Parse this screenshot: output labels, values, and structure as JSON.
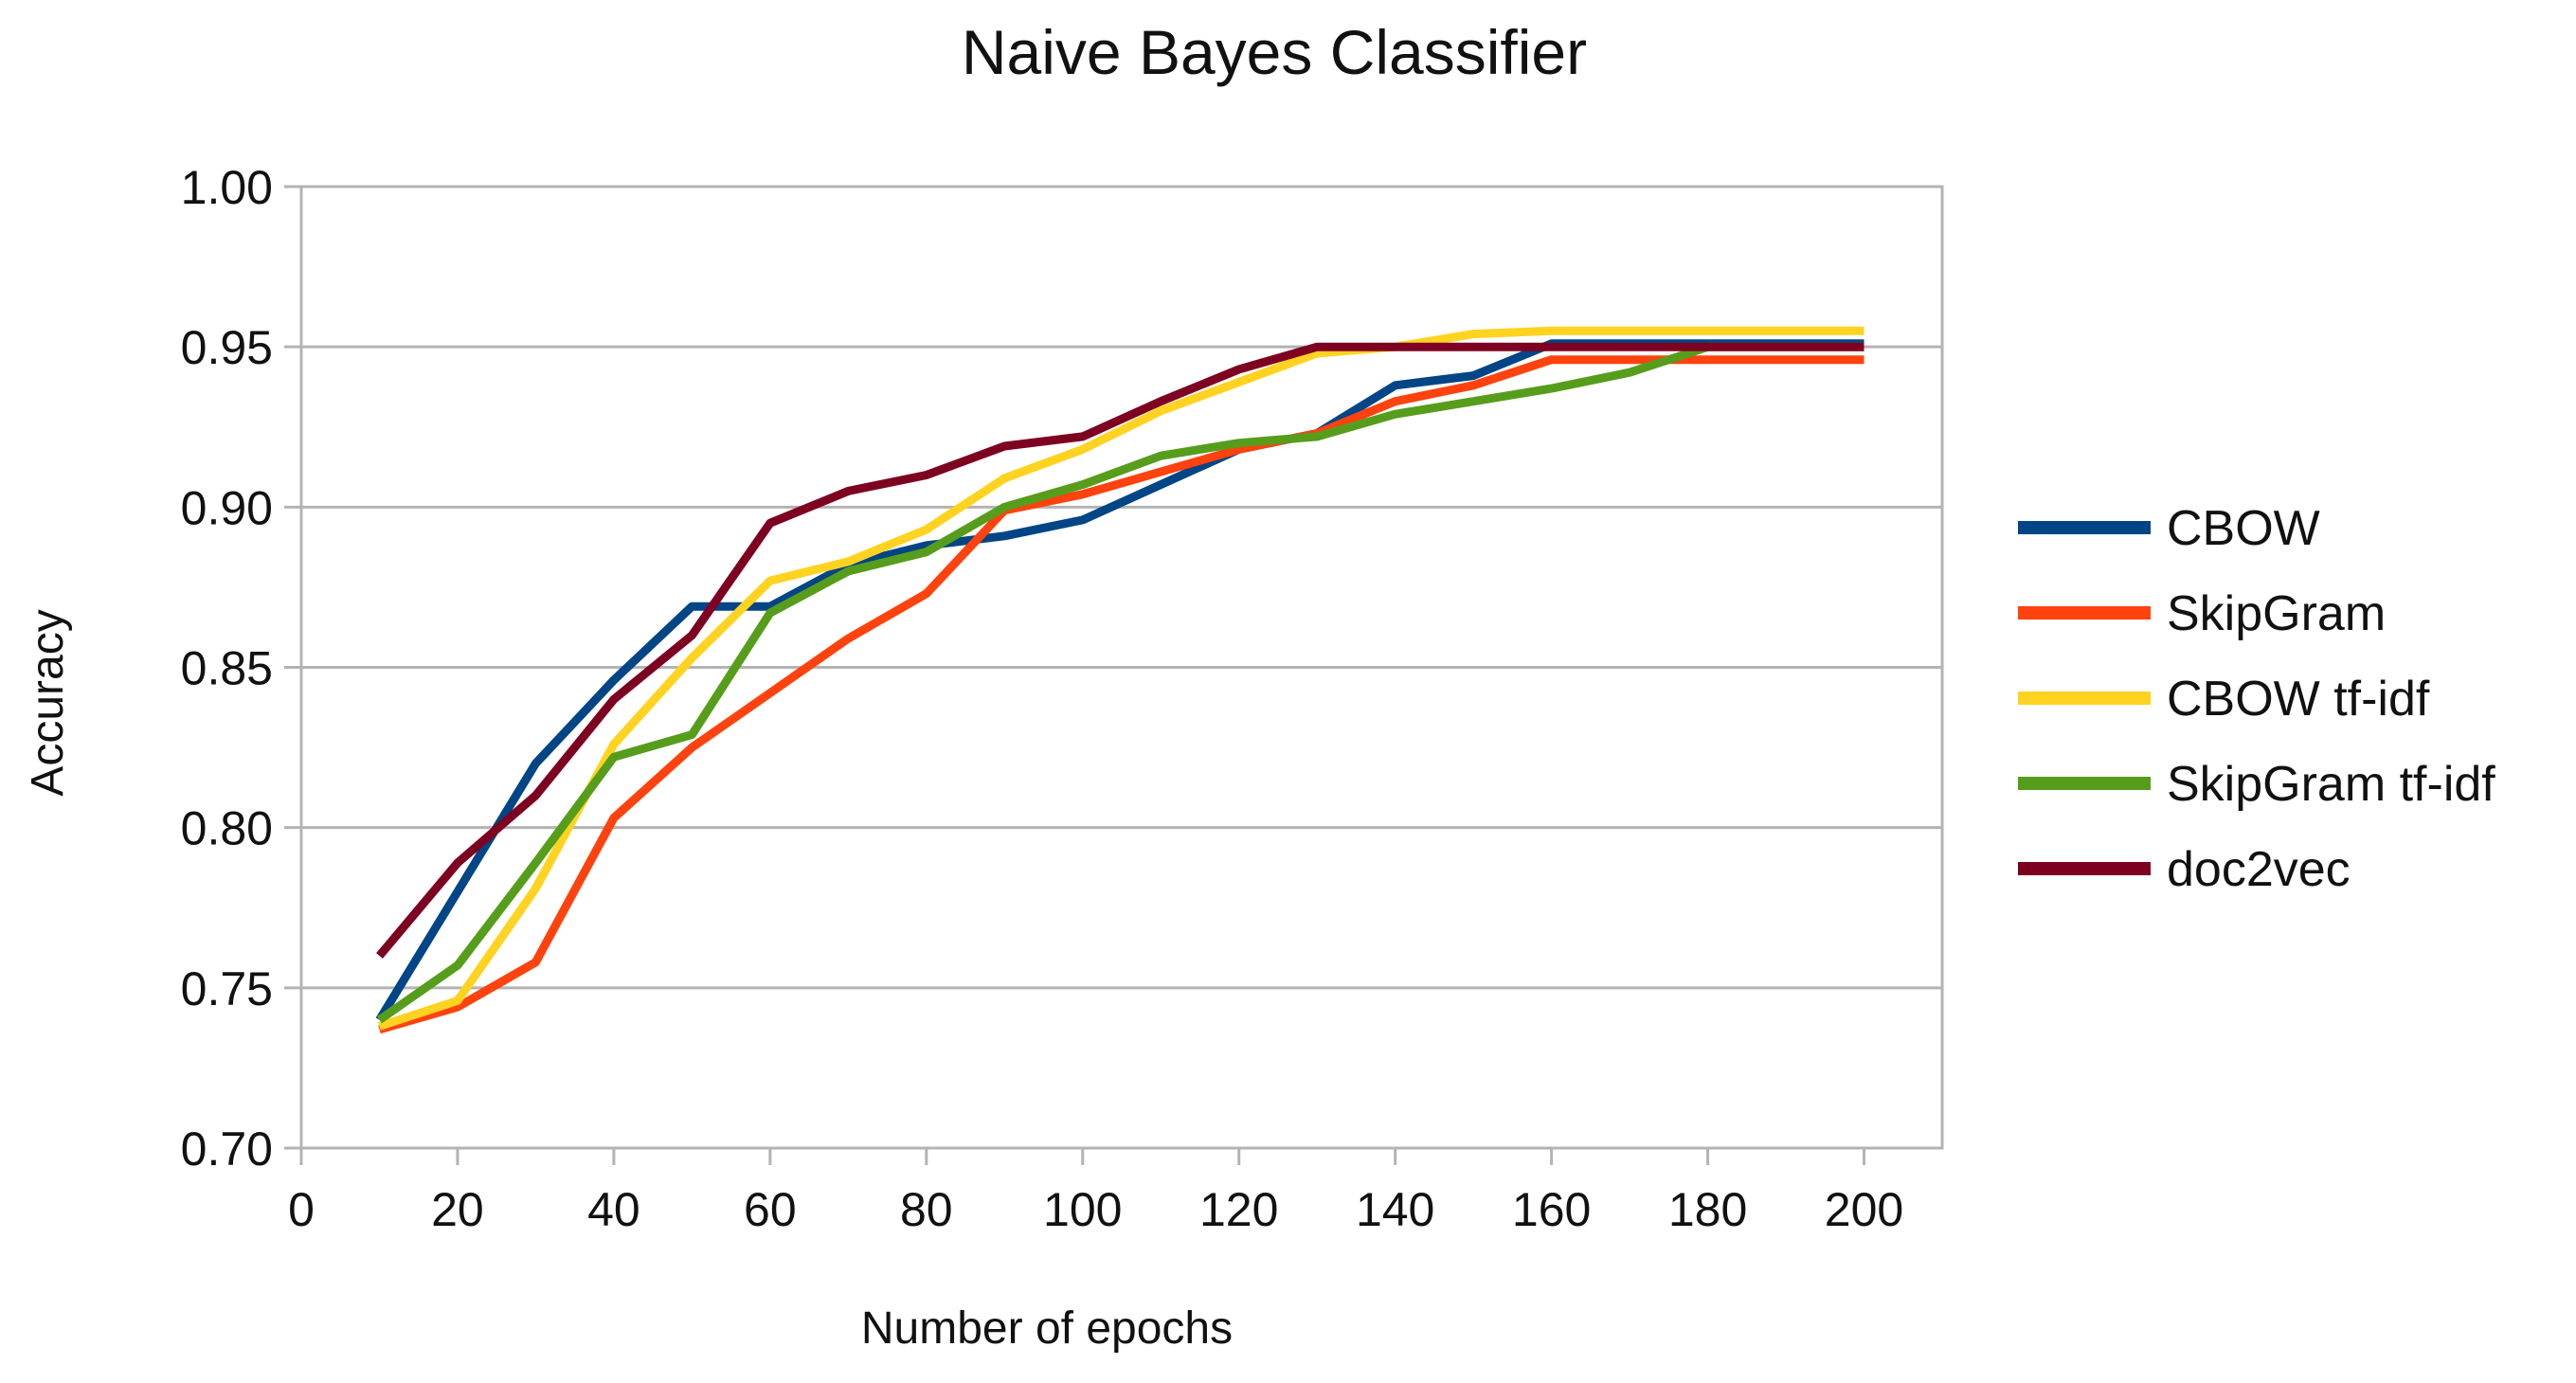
{
  "chart_data": {
    "type": "line",
    "title": "Naive Bayes Classifier",
    "xlabel": "Number of epochs",
    "ylabel": "Accuracy",
    "xlim": [
      0,
      210
    ],
    "ylim": [
      0.7,
      1.0
    ],
    "x_ticks": [
      0,
      20,
      40,
      60,
      80,
      100,
      120,
      140,
      160,
      180,
      200
    ],
    "x_tick_labels": [
      "0",
      "20",
      "40",
      "60",
      "80",
      "100",
      "120",
      "140",
      "160",
      "180",
      "200"
    ],
    "y_ticks": [
      0.7,
      0.75,
      0.8,
      0.85,
      0.9,
      0.95,
      1.0
    ],
    "y_tick_labels": [
      "0.70",
      "0.75",
      "0.80",
      "0.85",
      "0.90",
      "0.95",
      "1.00"
    ],
    "grid": "horizontal",
    "legend_position": "right",
    "x": [
      10,
      20,
      30,
      40,
      50,
      60,
      70,
      80,
      90,
      100,
      110,
      120,
      130,
      140,
      150,
      160,
      170,
      180,
      190,
      200
    ],
    "series": [
      {
        "name": "CBOW",
        "color": "#004586",
        "values": [
          0.74,
          0.78,
          0.82,
          0.846,
          0.869,
          0.869,
          0.882,
          0.888,
          0.891,
          0.896,
          0.907,
          0.918,
          0.923,
          0.938,
          0.941,
          0.951,
          0.951,
          0.951,
          0.951,
          0.951
        ]
      },
      {
        "name": "SkipGram",
        "color": "#ff420e",
        "values": [
          0.737,
          0.744,
          0.758,
          0.803,
          0.825,
          0.842,
          0.859,
          0.873,
          0.899,
          0.904,
          0.911,
          0.918,
          0.923,
          0.933,
          0.938,
          0.946,
          0.946,
          0.946,
          0.946,
          0.946
        ]
      },
      {
        "name": "CBOW tf-idf",
        "color": "#ffd320",
        "values": [
          0.738,
          0.746,
          0.781,
          0.826,
          0.853,
          0.877,
          0.883,
          0.893,
          0.909,
          0.918,
          0.93,
          0.939,
          0.948,
          0.95,
          0.954,
          0.955,
          0.955,
          0.955,
          0.955,
          0.955
        ]
      },
      {
        "name": "SkipGram tf-idf",
        "color": "#579d1c",
        "values": [
          0.74,
          0.757,
          0.789,
          0.822,
          0.829,
          0.867,
          0.88,
          0.886,
          0.9,
          0.907,
          0.916,
          0.92,
          0.922,
          0.929,
          0.933,
          0.937,
          0.942,
          0.95,
          0.95,
          0.95
        ]
      },
      {
        "name": "doc2vec",
        "color": "#7e0021",
        "values": [
          0.76,
          0.789,
          0.81,
          0.84,
          0.86,
          0.895,
          0.905,
          0.91,
          0.919,
          0.922,
          0.933,
          0.943,
          0.95,
          0.95,
          0.95,
          0.95,
          0.95,
          0.95,
          0.95,
          0.95
        ]
      }
    ]
  }
}
